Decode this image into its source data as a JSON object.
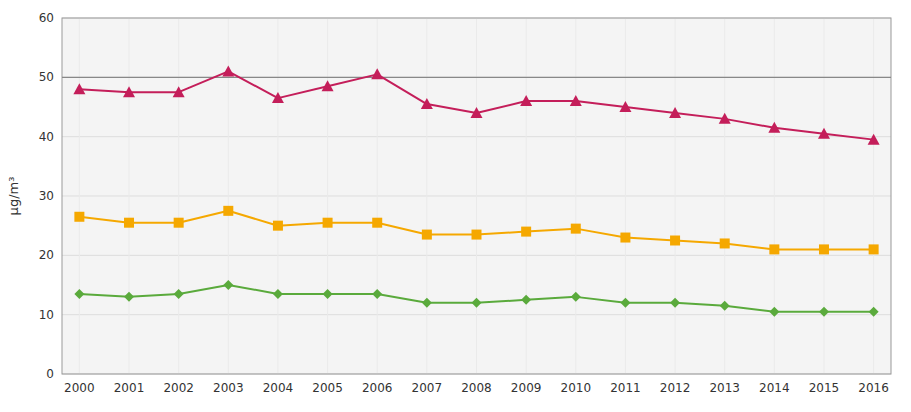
{
  "chart_data": {
    "type": "line",
    "y_label": "µg/m³",
    "x": [
      2000,
      2001,
      2002,
      2003,
      2004,
      2005,
      2006,
      2007,
      2008,
      2009,
      2010,
      2011,
      2012,
      2013,
      2014,
      2015,
      2016
    ],
    "series": [
      {
        "color": "#c41e5a",
        "marker": "triangle",
        "values": [
          48,
          47.5,
          47.5,
          51,
          46.5,
          48.5,
          50.5,
          45.5,
          44,
          46,
          46,
          45,
          44,
          43,
          41.5,
          40.5,
          39.5
        ]
      },
      {
        "color": "#f5a800",
        "marker": "square",
        "values": [
          26.5,
          25.5,
          25.5,
          27.5,
          25,
          25.5,
          25.5,
          23.5,
          23.5,
          24,
          24.5,
          23,
          22.5,
          22,
          21,
          21,
          21
        ]
      },
      {
        "color": "#5aaa3c",
        "marker": "diamond",
        "values": [
          13.5,
          13,
          13.5,
          15,
          13.5,
          13.5,
          13.5,
          12,
          12,
          12.5,
          13,
          12,
          12,
          11.5,
          10.5,
          10.5,
          10.5
        ]
      }
    ],
    "reference_line": 50,
    "xlim": [
      1999.65,
      2016.35
    ],
    "xticks": [
      2000,
      2001,
      2002,
      2003,
      2004,
      2005,
      2006,
      2007,
      2008,
      2009,
      2010,
      2011,
      2012,
      2013,
      2014,
      2015,
      2016
    ],
    "ylim": [
      0,
      60
    ],
    "yticks": [
      0,
      10,
      20,
      30,
      40,
      50,
      60
    ],
    "grid": true
  }
}
